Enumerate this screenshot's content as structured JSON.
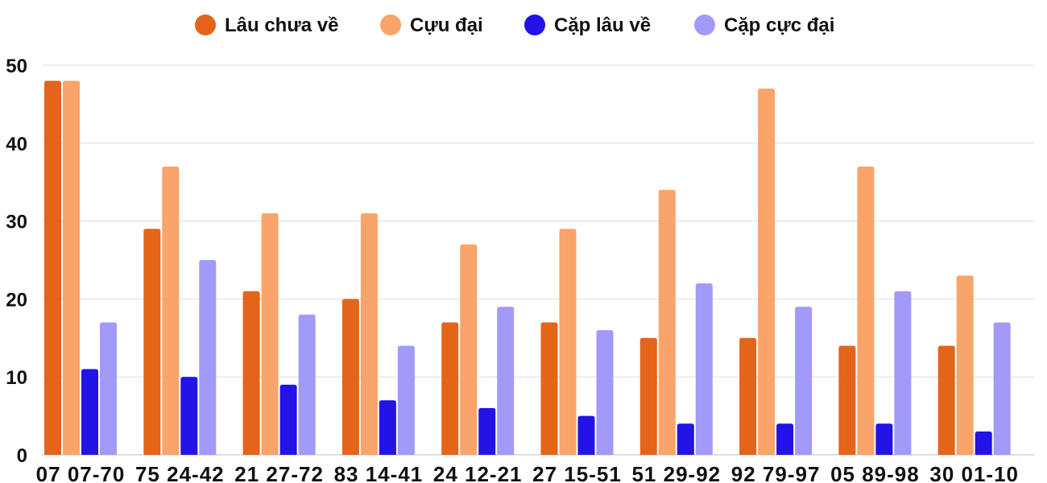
{
  "chart_data": {
    "type": "bar",
    "categories": [
      "07 07-70",
      "75 24-42",
      "21 27-72",
      "83 14-41",
      "24 12-21",
      "27 15-51",
      "51 29-92",
      "92 79-97",
      "05 89-98",
      "30 01-10"
    ],
    "series": [
      {
        "name": "Lâu chưa về",
        "color": "#e4641a",
        "values": [
          48,
          29,
          21,
          20,
          17,
          17,
          15,
          15,
          14,
          14
        ]
      },
      {
        "name": "Cựu đại",
        "color": "#f9a46a",
        "values": [
          48,
          37,
          31,
          31,
          27,
          29,
          34,
          47,
          37,
          23
        ]
      },
      {
        "name": "Cặp lâu về",
        "color": "#2313e6",
        "values": [
          11,
          10,
          9,
          7,
          6,
          5,
          4,
          4,
          4,
          3
        ]
      },
      {
        "name": "Cặp cực đại",
        "color": "#a29af9",
        "values": [
          17,
          25,
          18,
          14,
          19,
          16,
          22,
          19,
          21,
          17
        ]
      }
    ],
    "ylim": [
      0,
      50
    ],
    "yticks": [
      "0",
      "10",
      "20",
      "30",
      "40",
      "50"
    ],
    "grid": true,
    "legend_position": "top-center"
  }
}
